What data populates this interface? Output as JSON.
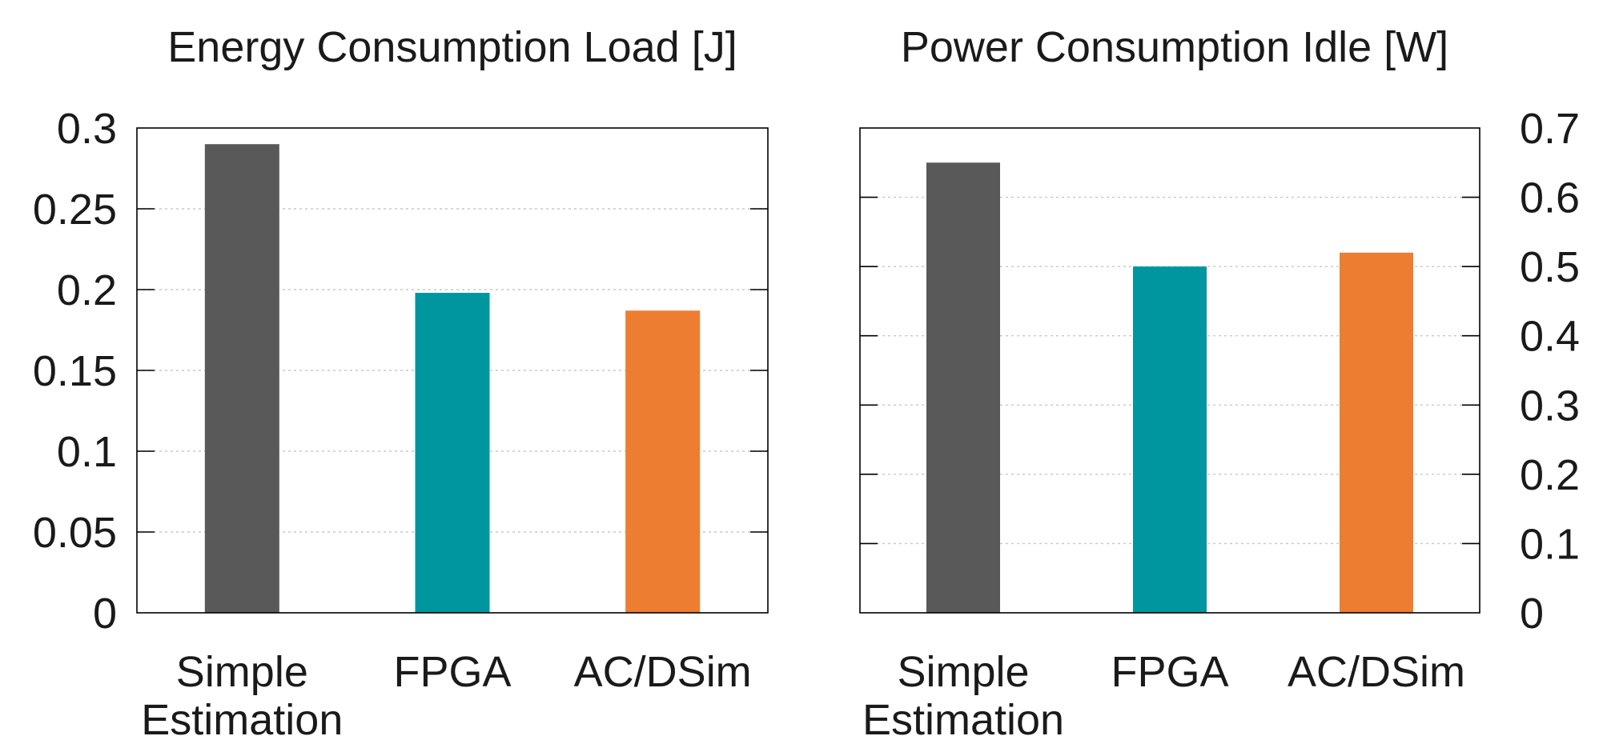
{
  "chart_data": [
    {
      "type": "bar",
      "title": "Energy Consumption Load [J]",
      "categories": [
        "Simple\nEstimation",
        "FPGA",
        "AC/DSim"
      ],
      "values": [
        0.29,
        0.198,
        0.187
      ],
      "colors": [
        "#595959",
        "#0096a0",
        "#ed7d31"
      ],
      "ylim": [
        0,
        0.3
      ],
      "yticks": [
        "0",
        "0.05",
        "0.1",
        "0.15",
        "0.2",
        "0.25",
        "0.3"
      ],
      "ytick_values": [
        0,
        0.05,
        0.1,
        0.15,
        0.2,
        0.25,
        0.3
      ],
      "y_axis_side": "left",
      "grid": true
    },
    {
      "type": "bar",
      "title": "Power Consumption Idle [W]",
      "categories": [
        "Simple\nEstimation",
        "FPGA",
        "AC/DSim"
      ],
      "values": [
        0.65,
        0.5,
        0.52
      ],
      "colors": [
        "#595959",
        "#0096a0",
        "#ed7d31"
      ],
      "ylim": [
        0,
        0.7
      ],
      "yticks": [
        "0",
        "0.1",
        "0.2",
        "0.3",
        "0.4",
        "0.5",
        "0.6",
        "0.7"
      ],
      "ytick_values": [
        0,
        0.1,
        0.2,
        0.3,
        0.4,
        0.5,
        0.6,
        0.7
      ],
      "y_axis_side": "right",
      "grid": true
    }
  ]
}
